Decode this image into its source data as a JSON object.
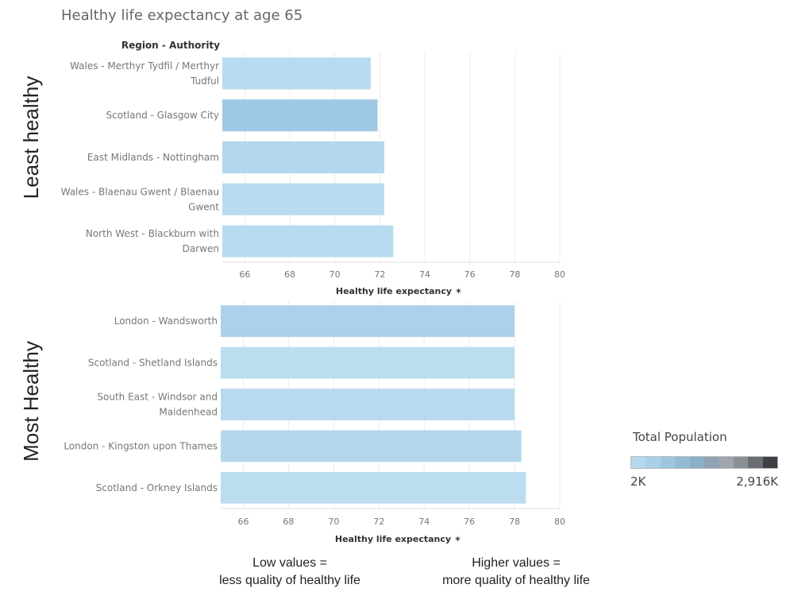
{
  "title": "Healthy life expectancy at age 65",
  "column_header": "Region - Authority",
  "side_labels": {
    "top": "Least healthy",
    "bottom": "Most Healthy"
  },
  "axis_label": "Healthy life expectancy ✶",
  "legend": {
    "title": "Total Population",
    "min": "2K",
    "max": "2,916K",
    "colors": [
      "#b5d9ee",
      "#a9d0e8",
      "#9ec6e0",
      "#93bbd6",
      "#8aafc7",
      "#8fa3b5",
      "#9ea5ad",
      "#8b9097",
      "#6a6e74",
      "#3d4045"
    ]
  },
  "notes": {
    "low": [
      "Low values =",
      "less quality of healthy life"
    ],
    "high": [
      "Higher values =",
      "more quality of healthy life"
    ]
  },
  "chart_data": [
    {
      "type": "bar",
      "orientation": "horizontal",
      "group": "Least healthy",
      "categories": [
        [
          "Wales - Merthyr Tydfil / Merthyr",
          "Tudful"
        ],
        [
          "Scotland - Glasgow City"
        ],
        [
          "East Midlands - Nottingham"
        ],
        [
          "Wales - Blaenau Gwent / Blaenau",
          "Gwent"
        ],
        [
          "North West - Blackburn with",
          "Darwen"
        ]
      ],
      "values": [
        71.6,
        71.9,
        72.2,
        72.2,
        72.6
      ],
      "colors": [
        "#b8dbef",
        "#9fc8e4",
        "#b3d7ed",
        "#b8dbef",
        "#b8dbef"
      ],
      "xlim": [
        65,
        80
      ],
      "xticks": [
        66,
        68,
        70,
        72,
        74,
        76,
        78,
        80
      ],
      "xlabel": "Healthy life expectancy"
    },
    {
      "type": "bar",
      "orientation": "horizontal",
      "group": "Most Healthy",
      "categories": [
        [
          "London - Wandsworth"
        ],
        [
          "Scotland - Shetland Islands"
        ],
        [
          "South East - Windsor and",
          "Maidenhead"
        ],
        [
          "London - Kingston upon Thames"
        ],
        [
          "Scotland - Orkney Islands"
        ]
      ],
      "values": [
        78.0,
        78.0,
        78.0,
        78.3,
        78.5
      ],
      "colors": [
        "#acd1ea",
        "#bcdcf0",
        "#b8daef",
        "#b3d6ed",
        "#bcdcf0"
      ],
      "xlim": [
        65,
        80
      ],
      "xticks": [
        66,
        68,
        70,
        72,
        74,
        76,
        78,
        80
      ],
      "xlabel": "Healthy life expectancy"
    }
  ]
}
